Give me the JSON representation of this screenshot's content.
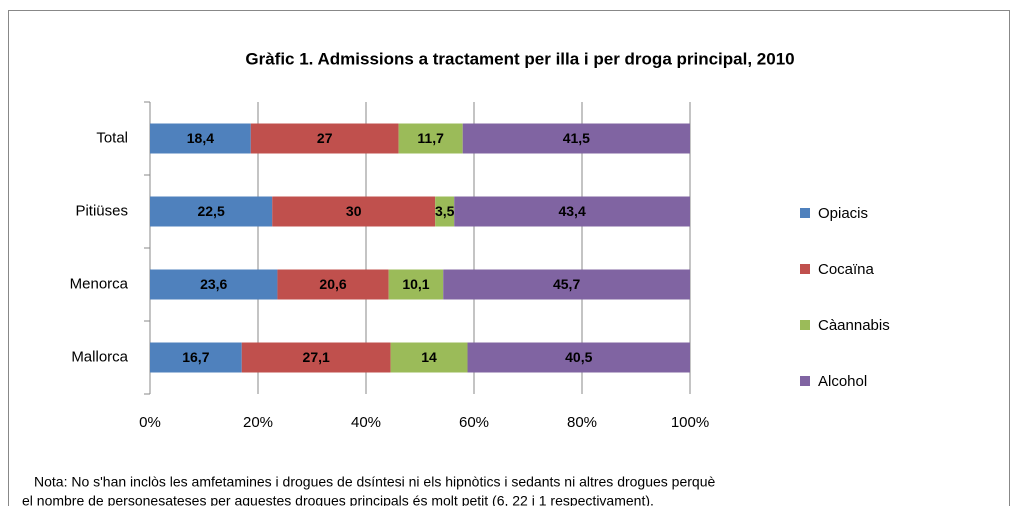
{
  "chart_data": {
    "type": "stacked-barh",
    "stacked": "percent",
    "title": "Gràfic 1. Admissions a tractament per illa i per droga principal, 2010",
    "categories": [
      "Total",
      "Pitiüses",
      "Menorca",
      "Mallorca"
    ],
    "series": [
      {
        "name": "Opiacis",
        "color": "#4f81bd",
        "values": [
          18.4,
          22.5,
          23.6,
          16.7
        ],
        "value_labels": [
          "18,4",
          "22,5",
          "23,6",
          "16,7"
        ]
      },
      {
        "name": "Cocaïna",
        "color": "#c0504d",
        "values": [
          27,
          30,
          20.6,
          27.1
        ],
        "value_labels": [
          "27",
          "30",
          "20,6",
          "27,1"
        ]
      },
      {
        "name": "Càannabis",
        "color": "#9bbb59",
        "values": [
          11.7,
          3.5,
          10.1,
          14
        ],
        "value_labels": [
          "11,7",
          "3,5",
          "10,1",
          "14"
        ]
      },
      {
        "name": "Alcohol",
        "color": "#8064a2",
        "values": [
          41.5,
          43.4,
          45.7,
          40.5
        ],
        "value_labels": [
          "41,5",
          "43,4",
          "45,7",
          "40,5"
        ]
      }
    ],
    "xlim": [
      0,
      100
    ],
    "xticks": [
      {
        "value": 0,
        "label": "0%"
      },
      {
        "value": 20,
        "label": "20%"
      },
      {
        "value": 40,
        "label": "40%"
      },
      {
        "value": 60,
        "label": "60%"
      },
      {
        "value": 80,
        "label": "80%"
      },
      {
        "value": 100,
        "label": "100%"
      }
    ],
    "grid": true,
    "legend": "right",
    "note": [
      "Nota:  No s'han inclòs les amfetamines i drogues  de dsíntesi ni els hipnòtics i sedants ni altres drogues perquè",
      "el nombre de personesateses per aquestes drogues principals és molt petit (6, 22 i 1 respectivament)."
    ]
  }
}
